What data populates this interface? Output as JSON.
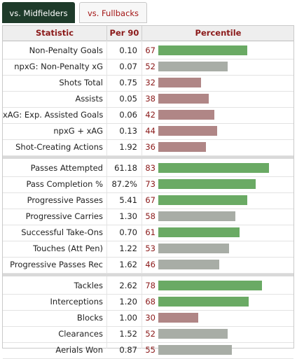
{
  "tabs": [
    {
      "label": "vs. Midfielders",
      "active": true
    },
    {
      "label": "vs. Fullbacks",
      "active": false
    }
  ],
  "headers": {
    "statistic": "Statistic",
    "per90": "Per 90",
    "percentile": "Percentile"
  },
  "colors": {
    "high": "#6aaa64",
    "mid": "#a8ada6",
    "low": "#b08686",
    "active_tab": "#1e3b2a",
    "accent": "#8b1a1a"
  },
  "groups": [
    [
      {
        "stat": "Non-Penalty Goals",
        "per90": "0.10",
        "pct": 67
      },
      {
        "stat": "npxG: Non-Penalty xG",
        "per90": "0.07",
        "pct": 52
      },
      {
        "stat": "Shots Total",
        "per90": "0.75",
        "pct": 32
      },
      {
        "stat": "Assists",
        "per90": "0.05",
        "pct": 38
      },
      {
        "stat": "xAG: Exp. Assisted Goals",
        "per90": "0.06",
        "pct": 42
      },
      {
        "stat": "npxG + xAG",
        "per90": "0.13",
        "pct": 44
      },
      {
        "stat": "Shot-Creating Actions",
        "per90": "1.92",
        "pct": 36
      }
    ],
    [
      {
        "stat": "Passes Attempted",
        "per90": "61.18",
        "pct": 83
      },
      {
        "stat": "Pass Completion %",
        "per90": "87.2%",
        "pct": 73
      },
      {
        "stat": "Progressive Passes",
        "per90": "5.41",
        "pct": 67
      },
      {
        "stat": "Progressive Carries",
        "per90": "1.30",
        "pct": 58
      },
      {
        "stat": "Successful Take-Ons",
        "per90": "0.70",
        "pct": 61
      },
      {
        "stat": "Touches (Att Pen)",
        "per90": "1.22",
        "pct": 53
      },
      {
        "stat": "Progressive Passes Rec",
        "per90": "1.62",
        "pct": 46
      }
    ],
    [
      {
        "stat": "Tackles",
        "per90": "2.62",
        "pct": 78
      },
      {
        "stat": "Interceptions",
        "per90": "1.20",
        "pct": 68
      },
      {
        "stat": "Blocks",
        "per90": "1.00",
        "pct": 30
      },
      {
        "stat": "Clearances",
        "per90": "1.52",
        "pct": 52
      },
      {
        "stat": "Aerials Won",
        "per90": "0.87",
        "pct": 55
      }
    ]
  ]
}
